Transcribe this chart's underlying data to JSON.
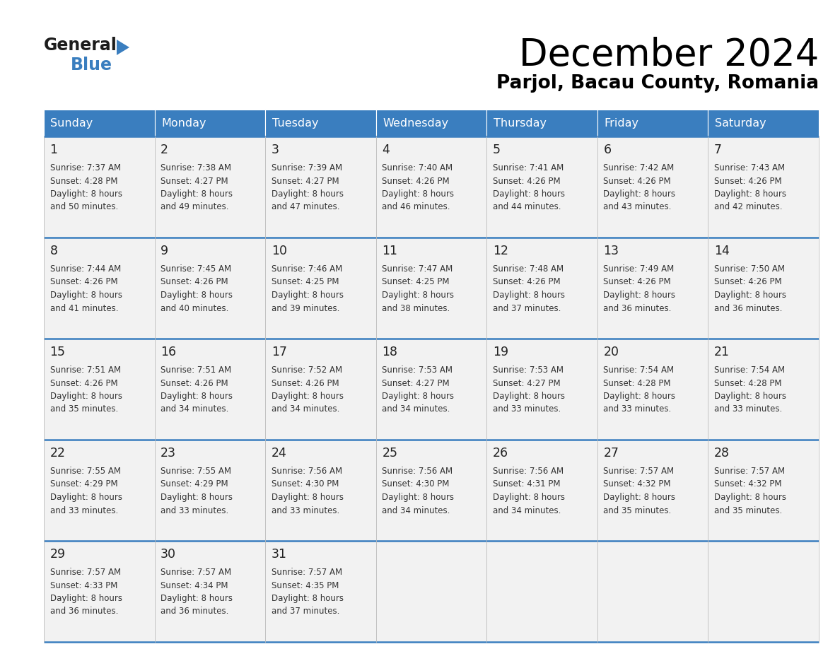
{
  "title": "December 2024",
  "subtitle": "Parjol, Bacau County, Romania",
  "header_bg": "#3a7ebf",
  "header_text": "#ffffff",
  "cell_bg": "#f2f2f2",
  "border_color": "#3a7ebf",
  "text_color": "#333333",
  "day_number_color": "#222222",
  "day_headers": [
    "Sunday",
    "Monday",
    "Tuesday",
    "Wednesday",
    "Thursday",
    "Friday",
    "Saturday"
  ],
  "days": [
    {
      "day": 1,
      "col": 0,
      "row": 0,
      "sunrise": "7:37 AM",
      "sunset": "4:28 PM",
      "daylight_min": "50"
    },
    {
      "day": 2,
      "col": 1,
      "row": 0,
      "sunrise": "7:38 AM",
      "sunset": "4:27 PM",
      "daylight_min": "49"
    },
    {
      "day": 3,
      "col": 2,
      "row": 0,
      "sunrise": "7:39 AM",
      "sunset": "4:27 PM",
      "daylight_min": "47"
    },
    {
      "day": 4,
      "col": 3,
      "row": 0,
      "sunrise": "7:40 AM",
      "sunset": "4:26 PM",
      "daylight_min": "46"
    },
    {
      "day": 5,
      "col": 4,
      "row": 0,
      "sunrise": "7:41 AM",
      "sunset": "4:26 PM",
      "daylight_min": "44"
    },
    {
      "day": 6,
      "col": 5,
      "row": 0,
      "sunrise": "7:42 AM",
      "sunset": "4:26 PM",
      "daylight_min": "43"
    },
    {
      "day": 7,
      "col": 6,
      "row": 0,
      "sunrise": "7:43 AM",
      "sunset": "4:26 PM",
      "daylight_min": "42"
    },
    {
      "day": 8,
      "col": 0,
      "row": 1,
      "sunrise": "7:44 AM",
      "sunset": "4:26 PM",
      "daylight_min": "41"
    },
    {
      "day": 9,
      "col": 1,
      "row": 1,
      "sunrise": "7:45 AM",
      "sunset": "4:26 PM",
      "daylight_min": "40"
    },
    {
      "day": 10,
      "col": 2,
      "row": 1,
      "sunrise": "7:46 AM",
      "sunset": "4:25 PM",
      "daylight_min": "39"
    },
    {
      "day": 11,
      "col": 3,
      "row": 1,
      "sunrise": "7:47 AM",
      "sunset": "4:25 PM",
      "daylight_min": "38"
    },
    {
      "day": 12,
      "col": 4,
      "row": 1,
      "sunrise": "7:48 AM",
      "sunset": "4:26 PM",
      "daylight_min": "37"
    },
    {
      "day": 13,
      "col": 5,
      "row": 1,
      "sunrise": "7:49 AM",
      "sunset": "4:26 PM",
      "daylight_min": "36"
    },
    {
      "day": 14,
      "col": 6,
      "row": 1,
      "sunrise": "7:50 AM",
      "sunset": "4:26 PM",
      "daylight_min": "36"
    },
    {
      "day": 15,
      "col": 0,
      "row": 2,
      "sunrise": "7:51 AM",
      "sunset": "4:26 PM",
      "daylight_min": "35"
    },
    {
      "day": 16,
      "col": 1,
      "row": 2,
      "sunrise": "7:51 AM",
      "sunset": "4:26 PM",
      "daylight_min": "34"
    },
    {
      "day": 17,
      "col": 2,
      "row": 2,
      "sunrise": "7:52 AM",
      "sunset": "4:26 PM",
      "daylight_min": "34"
    },
    {
      "day": 18,
      "col": 3,
      "row": 2,
      "sunrise": "7:53 AM",
      "sunset": "4:27 PM",
      "daylight_min": "34"
    },
    {
      "day": 19,
      "col": 4,
      "row": 2,
      "sunrise": "7:53 AM",
      "sunset": "4:27 PM",
      "daylight_min": "33"
    },
    {
      "day": 20,
      "col": 5,
      "row": 2,
      "sunrise": "7:54 AM",
      "sunset": "4:28 PM",
      "daylight_min": "33"
    },
    {
      "day": 21,
      "col": 6,
      "row": 2,
      "sunrise": "7:54 AM",
      "sunset": "4:28 PM",
      "daylight_min": "33"
    },
    {
      "day": 22,
      "col": 0,
      "row": 3,
      "sunrise": "7:55 AM",
      "sunset": "4:29 PM",
      "daylight_min": "33"
    },
    {
      "day": 23,
      "col": 1,
      "row": 3,
      "sunrise": "7:55 AM",
      "sunset": "4:29 PM",
      "daylight_min": "33"
    },
    {
      "day": 24,
      "col": 2,
      "row": 3,
      "sunrise": "7:56 AM",
      "sunset": "4:30 PM",
      "daylight_min": "33"
    },
    {
      "day": 25,
      "col": 3,
      "row": 3,
      "sunrise": "7:56 AM",
      "sunset": "4:30 PM",
      "daylight_min": "34"
    },
    {
      "day": 26,
      "col": 4,
      "row": 3,
      "sunrise": "7:56 AM",
      "sunset": "4:31 PM",
      "daylight_min": "34"
    },
    {
      "day": 27,
      "col": 5,
      "row": 3,
      "sunrise": "7:57 AM",
      "sunset": "4:32 PM",
      "daylight_min": "35"
    },
    {
      "day": 28,
      "col": 6,
      "row": 3,
      "sunrise": "7:57 AM",
      "sunset": "4:32 PM",
      "daylight_min": "35"
    },
    {
      "day": 29,
      "col": 0,
      "row": 4,
      "sunrise": "7:57 AM",
      "sunset": "4:33 PM",
      "daylight_min": "36"
    },
    {
      "day": 30,
      "col": 1,
      "row": 4,
      "sunrise": "7:57 AM",
      "sunset": "4:34 PM",
      "daylight_min": "36"
    },
    {
      "day": 31,
      "col": 2,
      "row": 4,
      "sunrise": "7:57 AM",
      "sunset": "4:35 PM",
      "daylight_min": "37"
    }
  ]
}
